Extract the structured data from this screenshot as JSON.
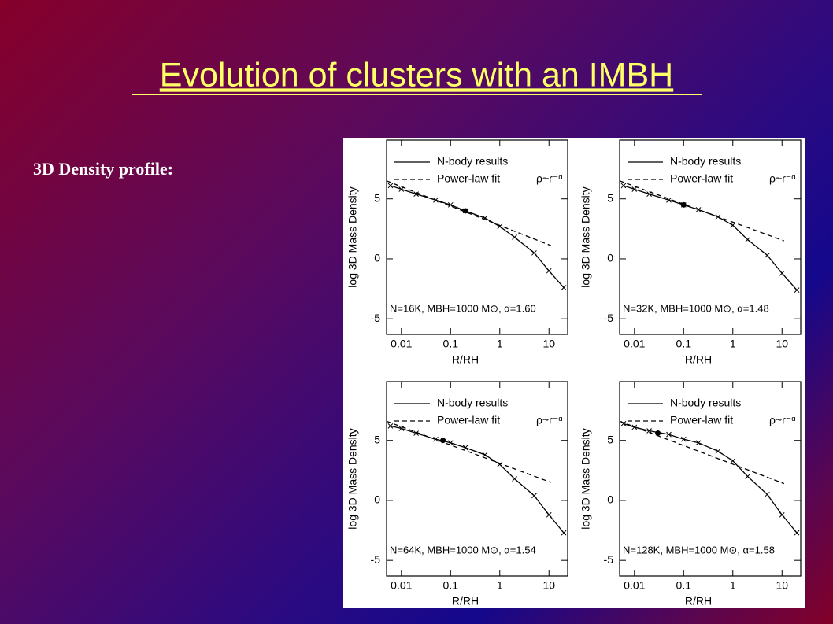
{
  "title": "Evolution of clusters with an IMBH",
  "subtitle": "3D Density profile:",
  "chart_data": [
    {
      "type": "line",
      "xlabel": "R/RH",
      "ylabel": "log 3D Mass Density",
      "xlog": true,
      "xlim": [
        0.005,
        24
      ],
      "ylim": [
        -6.3,
        9.9
      ],
      "xticks": [
        0.01,
        0.1,
        1,
        10
      ],
      "yticks": [
        -5,
        0,
        5
      ],
      "annotation": "N=16K, MBH=1000 M⊙, α=1.60",
      "legend_note": "ρ~r⁻ᵅ",
      "series": [
        {
          "name": "N-body results",
          "color": "#000000",
          "x": [
            0.006,
            0.01,
            0.02,
            0.05,
            0.1,
            0.2,
            0.5,
            1,
            2,
            5,
            10,
            20
          ],
          "values": [
            6.1,
            5.8,
            5.4,
            4.9,
            4.5,
            4.0,
            3.4,
            2.7,
            1.8,
            0.5,
            -1.0,
            -2.4
          ]
        },
        {
          "name": "Power-law fit",
          "color": "#000000",
          "dashed": true,
          "x": [
            0.005,
            11
          ],
          "values": [
            6.5,
            1.1
          ]
        }
      ],
      "dot": {
        "x": 0.2,
        "y": 4.0
      }
    },
    {
      "type": "line",
      "xlabel": "R/RH",
      "ylabel": "log 3D Mass Density",
      "xlog": true,
      "xlim": [
        0.005,
        24
      ],
      "ylim": [
        -6.3,
        9.9
      ],
      "xticks": [
        0.01,
        0.1,
        1,
        10
      ],
      "yticks": [
        -5,
        0,
        5
      ],
      "annotation": "N=32K, MBH=1000 M⊙, α=1.48",
      "legend_note": "ρ~r⁻ᵅ",
      "series": [
        {
          "name": "N-body results",
          "color": "#000000",
          "x": [
            0.006,
            0.01,
            0.02,
            0.05,
            0.1,
            0.2,
            0.5,
            1,
            2,
            5,
            10,
            20
          ],
          "values": [
            6.1,
            5.8,
            5.4,
            4.9,
            4.5,
            4.1,
            3.5,
            2.8,
            1.6,
            0.3,
            -1.2,
            -2.6
          ]
        },
        {
          "name": "Power-law fit",
          "color": "#000000",
          "dashed": true,
          "x": [
            0.005,
            11
          ],
          "values": [
            6.5,
            1.5
          ]
        }
      ],
      "dot": {
        "x": 0.1,
        "y": 4.5
      }
    },
    {
      "type": "line",
      "xlabel": "R/RH",
      "ylabel": "log 3D Mass Density",
      "xlog": true,
      "xlim": [
        0.005,
        24
      ],
      "ylim": [
        -6.3,
        9.9
      ],
      "xticks": [
        0.01,
        0.1,
        1,
        10
      ],
      "yticks": [
        -5,
        0,
        5
      ],
      "annotation": "N=64K, MBH=1000 M⊙, α=1.54",
      "legend_note": "ρ~r⁻ᵅ",
      "series": [
        {
          "name": "N-body results",
          "color": "#000000",
          "x": [
            0.006,
            0.01,
            0.02,
            0.05,
            0.1,
            0.2,
            0.5,
            1,
            2,
            5,
            10,
            20
          ],
          "values": [
            6.2,
            6.0,
            5.6,
            5.1,
            4.8,
            4.4,
            3.8,
            3.0,
            1.8,
            0.4,
            -1.2,
            -2.7
          ]
        },
        {
          "name": "Power-law fit",
          "color": "#000000",
          "dashed": true,
          "x": [
            0.005,
            11
          ],
          "values": [
            6.6,
            1.5
          ]
        }
      ],
      "dot": {
        "x": 0.07,
        "y": 5.0
      }
    },
    {
      "type": "line",
      "xlabel": "R/RH",
      "ylabel": "log 3D Mass Density",
      "xlog": true,
      "xlim": [
        0.005,
        24
      ],
      "ylim": [
        -6.3,
        9.9
      ],
      "xticks": [
        0.01,
        0.1,
        1,
        10
      ],
      "yticks": [
        -5,
        0,
        5
      ],
      "annotation": "N=128K, MBH=1000 M⊙, α=1.58",
      "legend_note": "ρ~r⁻ᵅ",
      "series": [
        {
          "name": "N-body results",
          "color": "#000000",
          "x": [
            0.006,
            0.01,
            0.02,
            0.05,
            0.1,
            0.2,
            0.5,
            1,
            2,
            5,
            10,
            20
          ],
          "values": [
            6.4,
            6.1,
            5.8,
            5.5,
            5.1,
            4.8,
            4.1,
            3.3,
            2.0,
            0.5,
            -1.2,
            -2.7
          ]
        },
        {
          "name": "Power-law fit",
          "color": "#000000",
          "dashed": true,
          "x": [
            0.005,
            11
          ],
          "values": [
            6.6,
            1.4
          ]
        }
      ],
      "dot": {
        "x": 0.03,
        "y": 5.6
      }
    }
  ]
}
